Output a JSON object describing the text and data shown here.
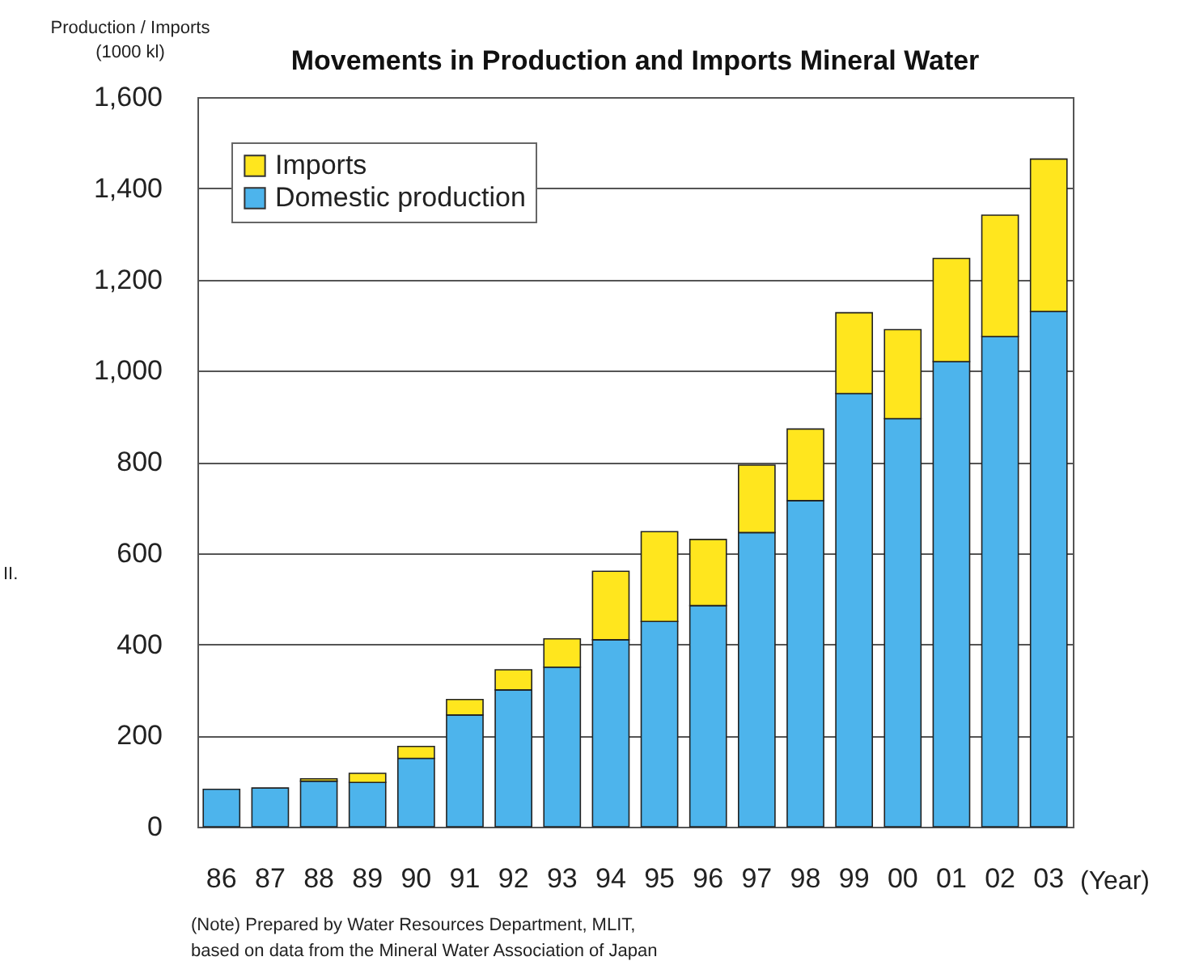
{
  "chart_data": {
    "type": "bar",
    "title": "Movements in Production and Imports Mineral Water",
    "ylabel": "Production / Imports\n(1000 kl)",
    "xlabel": "(Year)",
    "categories": [
      "86",
      "87",
      "88",
      "89",
      "90",
      "91",
      "92",
      "93",
      "94",
      "95",
      "96",
      "97",
      "98",
      "99",
      "00",
      "01",
      "02",
      "03"
    ],
    "stacked": true,
    "series": [
      {
        "name": "Domestic production",
        "color": "#4db4ec",
        "values": [
          82,
          85,
          100,
          97,
          150,
          245,
          300,
          350,
          410,
          450,
          485,
          645,
          715,
          950,
          895,
          1020,
          1075,
          1130
        ]
      },
      {
        "name": "Imports",
        "color": "#ffe61e",
        "values": [
          null,
          null,
          5,
          20,
          26,
          34,
          44,
          62,
          150,
          197,
          145,
          148,
          157,
          177,
          195,
          226,
          266,
          334
        ]
      }
    ],
    "ylim": [
      0,
      1600
    ],
    "yticks": [
      0,
      200,
      400,
      600,
      800,
      {
        "value": 1000,
        "label": "1,000"
      },
      {
        "value": 1200,
        "label": "1,200"
      },
      {
        "value": 1400,
        "label": "1,400"
      },
      {
        "value": 1600,
        "label": "1,600"
      }
    ],
    "grid": "y",
    "legend": "top left",
    "annotations": [
      "(Note) Prepared by Water Resources Department, MLIT,\nbased on data from the Mineral Water Association of Japan",
      "II."
    ]
  }
}
